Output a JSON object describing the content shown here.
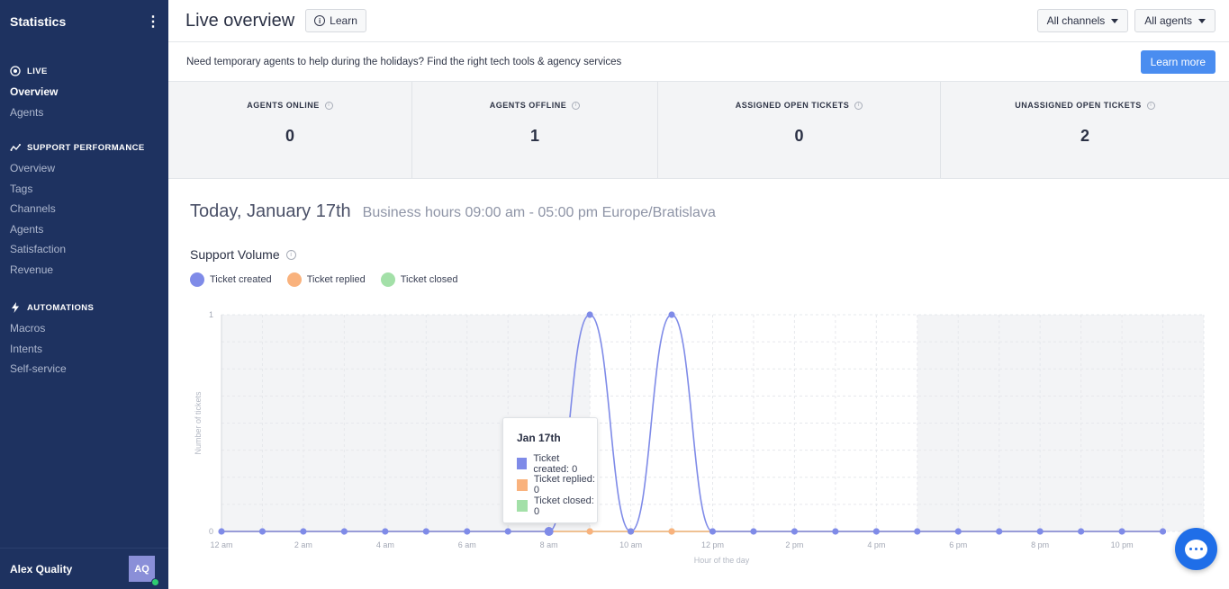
{
  "sidebar": {
    "title": "Statistics",
    "sections": [
      {
        "label": "LIVE",
        "icon": "live-circle-icon",
        "items": [
          "Overview",
          "Agents"
        ],
        "active": 0
      },
      {
        "label": "SUPPORT PERFORMANCE",
        "icon": "trend-icon",
        "items": [
          "Overview",
          "Tags",
          "Channels",
          "Agents",
          "Satisfaction",
          "Revenue"
        ],
        "active": -1
      },
      {
        "label": "AUTOMATIONS",
        "icon": "bolt-icon",
        "items": [
          "Macros",
          "Intents",
          "Self-service"
        ],
        "active": -1
      }
    ],
    "user": {
      "name": "Alex Quality",
      "initials": "AQ",
      "status_color": "#2ecc71"
    }
  },
  "header": {
    "title": "Live overview",
    "learn_label": "Learn",
    "channels_filter": "All channels",
    "agents_filter": "All agents"
  },
  "banner": {
    "text": "Need temporary agents to help during the holidays? Find the right tech tools & agency services",
    "button": "Learn more"
  },
  "stats": [
    {
      "label": "AGENTS ONLINE",
      "value": "0"
    },
    {
      "label": "AGENTS OFFLINE",
      "value": "1"
    },
    {
      "label": "ASSIGNED OPEN TICKETS",
      "value": "0"
    },
    {
      "label": "UNASSIGNED OPEN TICKETS",
      "value": "2"
    }
  ],
  "today": {
    "date": "Today, January 17th",
    "hours": "Business hours 09:00 am - 05:00 pm Europe/Bratislava"
  },
  "support_volume": {
    "title": "Support Volume",
    "legend": [
      {
        "label": "Ticket created",
        "color": "#7f8be8"
      },
      {
        "label": "Ticket replied",
        "color": "#f9b27d"
      },
      {
        "label": "Ticket closed",
        "color": "#a3e0a8"
      }
    ],
    "tooltip": {
      "title": "Jan 17th",
      "rows": [
        "Ticket created: 0",
        "Ticket replied: 0",
        "Ticket closed: 0"
      ]
    }
  },
  "chart_data": {
    "type": "line",
    "ylabel": "Number of tickets",
    "xlabel": "Hour of the day",
    "ylim": [
      0,
      1
    ],
    "y_ticks": [
      "0",
      "1"
    ],
    "x": [
      0,
      1,
      2,
      3,
      4,
      5,
      6,
      7,
      8,
      9,
      10,
      11,
      12,
      13,
      14,
      15,
      16,
      17,
      18,
      19,
      20,
      21,
      22,
      23
    ],
    "x_tick_labels": [
      "12 am",
      "2 am",
      "4 am",
      "6 am",
      "8 am",
      "10 am",
      "12 pm",
      "2 pm",
      "4 pm",
      "6 pm",
      "8 pm",
      "10 pm"
    ],
    "business_hours": [
      9,
      17
    ],
    "series": [
      {
        "name": "Ticket created",
        "color": "#7f8be8",
        "values": [
          0,
          0,
          0,
          0,
          0,
          0,
          0,
          0,
          0,
          1,
          0,
          1,
          0,
          0,
          0,
          0,
          0,
          0,
          0,
          0,
          0,
          0,
          0,
          0
        ]
      },
      {
        "name": "Ticket replied",
        "color": "#f9b27d",
        "values": [
          0,
          0,
          0,
          0,
          0,
          0,
          0,
          0,
          0,
          0,
          0,
          0,
          0,
          0,
          0,
          0,
          0,
          0,
          0,
          0,
          0,
          0,
          0,
          0
        ]
      },
      {
        "name": "Ticket closed",
        "color": "#a3e0a8",
        "values": [
          0,
          0,
          0,
          0,
          0,
          0,
          0,
          0,
          0,
          0,
          0,
          0,
          0,
          0,
          0,
          0,
          0,
          0,
          0,
          0,
          0,
          0,
          0,
          0
        ]
      }
    ]
  }
}
